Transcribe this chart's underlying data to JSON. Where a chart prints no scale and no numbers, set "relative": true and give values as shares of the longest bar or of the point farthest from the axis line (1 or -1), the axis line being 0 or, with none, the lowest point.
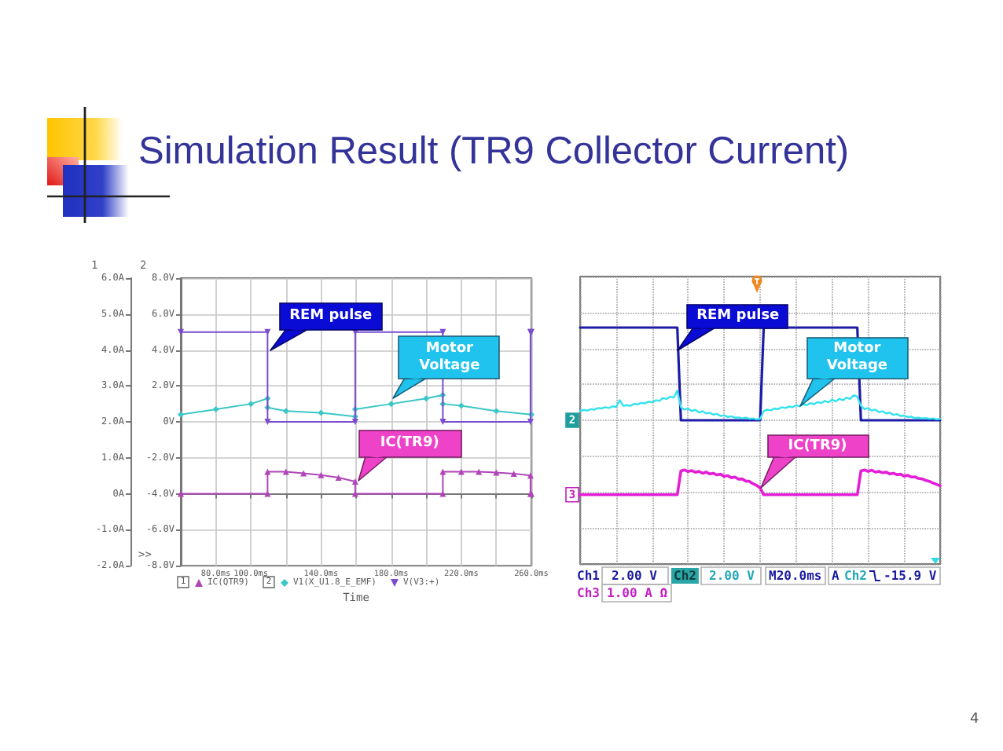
{
  "chart_data": [
    {
      "type": "line",
      "title": "Simulation Result (TR9 Collector Current)",
      "xlabel": "Time",
      "xlim": [
        60,
        260
      ],
      "xticks": [
        {
          "value": 80,
          "label": "80.0ms"
        },
        {
          "value": 100,
          "label": "100.0ms"
        },
        {
          "value": 120,
          "label": null
        },
        {
          "value": 140,
          "label": "140.0ms"
        },
        {
          "value": 160,
          "label": null
        },
        {
          "value": 180,
          "label": "180.0ms"
        },
        {
          "value": 200,
          "label": null
        },
        {
          "value": 220,
          "label": "220.0ms"
        },
        {
          "value": 240,
          "label": null
        },
        {
          "value": 260,
          "label": "260.0ms"
        }
      ],
      "ylim": [
        -2,
        6
      ],
      "yticks": [
        {
          "value": -2,
          "label": "-2.0A"
        },
        {
          "value": -1,
          "label": "-1.0A"
        },
        {
          "value": 0,
          "label": "0A"
        },
        {
          "value": 1,
          "label": "1.0A"
        },
        {
          "value": 2,
          "label": "2.0A"
        },
        {
          "value": 3,
          "label": "3.0A"
        },
        {
          "value": 4,
          "label": "4.0A"
        },
        {
          "value": 5,
          "label": "5.0A"
        },
        {
          "value": 6,
          "label": "6.0A"
        }
      ],
      "y2lim": [
        -8,
        8
      ],
      "y2ticks": [
        {
          "value": -8,
          "label": "-8.0V"
        },
        {
          "value": -6,
          "label": "-6.0V"
        },
        {
          "value": -4,
          "label": "-4.0V"
        },
        {
          "value": -2,
          "label": "-2.0V"
        },
        {
          "value": 0,
          "label": "0V"
        },
        {
          "value": 2,
          "label": "2.0V"
        },
        {
          "value": 4,
          "label": "4.0V"
        },
        {
          "value": 6,
          "label": "6.0V"
        },
        {
          "value": 8,
          "label": "8.0V"
        }
      ],
      "grid": true,
      "legend": "bottom",
      "series": [
        {
          "name": "IC(QTR9)",
          "color": "#b044b8",
          "marker": "triangle",
          "x": [
            60,
            109.5,
            109.5,
            120,
            130,
            140,
            150,
            159.5,
            159.5,
            209.5,
            209.5,
            220,
            230,
            240,
            250,
            259.5,
            259.5,
            260
          ],
          "values": [
            0,
            0,
            0.61,
            0.61,
            0.57,
            0.52,
            0.45,
            0.34,
            0,
            0,
            0.61,
            0.61,
            0.61,
            0.59,
            0.56,
            0.51,
            0,
            0
          ]
        },
        {
          "name": "V1(X_U1.8_E_EMF)",
          "color": "#3cc6c6",
          "axis": "y2",
          "marker": "diamond",
          "x": [
            60,
            80,
            100,
            109.5,
            109.5,
            120,
            140,
            159.5,
            159.5,
            180,
            200,
            209.5,
            209.5,
            220,
            240,
            260
          ],
          "values": [
            0.4,
            0.7,
            1.0,
            1.3,
            0.8,
            0.6,
            0.5,
            0.3,
            0.7,
            1.0,
            1.3,
            1.5,
            1.0,
            0.9,
            0.6,
            0.4
          ]
        },
        {
          "name": "V(V3:+)",
          "color": "#7a4cd0",
          "axis": "y2",
          "marker": "triangle-down",
          "x": [
            60,
            109.5,
            109.5,
            159.5,
            159.5,
            209.5,
            209.5,
            259.5,
            259.5,
            260
          ],
          "values": [
            5,
            5,
            0,
            0,
            5,
            5,
            0,
            0,
            5,
            5
          ]
        }
      ],
      "annotations": [
        {
          "text": "REM pulse",
          "x": 111,
          "y": 4
        },
        {
          "text": "Motor Voltage",
          "x": 181.5,
          "y": 2.65
        },
        {
          "text": "IC(TR9)",
          "x": 161,
          "y": 0.36
        },
        ">>",
        "1",
        "2",
        "1",
        "2"
      ]
    },
    {
      "type": "line",
      "relative": true,
      "grid": true,
      "categories": [
        null,
        null,
        null,
        null,
        null,
        null,
        null,
        null,
        null,
        null,
        null,
        null,
        null,
        null,
        null,
        null,
        null,
        null,
        null,
        null,
        null,
        null,
        null,
        null,
        null,
        null,
        null,
        null,
        null,
        null,
        null,
        null,
        null,
        null,
        null,
        null,
        null,
        null,
        null,
        null,
        null,
        null,
        null,
        null,
        null,
        null,
        null,
        null,
        null,
        null,
        null,
        null,
        null,
        null,
        null,
        null,
        null,
        null,
        null,
        null,
        null,
        null,
        null,
        null,
        null,
        null,
        null,
        null,
        null,
        null,
        null,
        null,
        null,
        null,
        null,
        null,
        null,
        null,
        null,
        null,
        null,
        null,
        null,
        null,
        null,
        null,
        null,
        null,
        null,
        null,
        null,
        null,
        null,
        null,
        null,
        null,
        null,
        null,
        null,
        null,
        null
      ],
      "series": [
        {
          "name": "REM pulse",
          "color": "#1c1ca6",
          "values": [
            1,
            1,
            1,
            1,
            1,
            1,
            1,
            1,
            1,
            1,
            1,
            1,
            1,
            1,
            1,
            1,
            1,
            1,
            1,
            1,
            1,
            1,
            1,
            1,
            1,
            1,
            1,
            1,
            0.608,
            0.608,
            0.608,
            0.608,
            0.608,
            0.608,
            0.608,
            0.608,
            0.608,
            0.608,
            0.608,
            0.608,
            0.608,
            0.608,
            0.608,
            0.608,
            0.608,
            0.608,
            0.608,
            0.608,
            0.608,
            0.608,
            0.608,
            1,
            1,
            1,
            1,
            1,
            1,
            1,
            1,
            1,
            1,
            1,
            1,
            1,
            1,
            1,
            1,
            1,
            1,
            1,
            1,
            1,
            1,
            1,
            1,
            1,
            1,
            1,
            0.608,
            0.608,
            0.608,
            0.608,
            0.608,
            0.608,
            0.608,
            0.608,
            0.608,
            0.608,
            0.608,
            0.608,
            0.608,
            0.608,
            0.608,
            0.608,
            0.608,
            0.608,
            0.608,
            0.608,
            0.608,
            0.608,
            0.608
          ]
        },
        {
          "name": "Motor Voltage",
          "color": "#33e2ee",
          "values": [
            0.647,
            0.652,
            0.649,
            0.655,
            0.653,
            0.66,
            0.658,
            0.663,
            0.66,
            0.667,
            0.664,
            0.693,
            0.669,
            0.672,
            0.669,
            0.678,
            0.675,
            0.682,
            0.679,
            0.687,
            0.684,
            0.693,
            0.69,
            0.702,
            0.698,
            0.708,
            0.704,
            0.733,
            0.663,
            0.653,
            0.658,
            0.647,
            0.652,
            0.641,
            0.646,
            0.637,
            0.64,
            0.632,
            0.635,
            0.626,
            0.629,
            0.622,
            0.625,
            0.619,
            0.62,
            0.616,
            0.619,
            0.614,
            0.616,
            0.612,
            0.614,
            0.647,
            0.653,
            0.65,
            0.658,
            0.655,
            0.663,
            0.66,
            0.666,
            0.663,
            0.672,
            0.667,
            0.676,
            0.672,
            0.681,
            0.676,
            0.685,
            0.681,
            0.69,
            0.684,
            0.695,
            0.688,
            0.699,
            0.693,
            0.704,
            0.698,
            0.714,
            0.708,
            0.669,
            0.655,
            0.66,
            0.649,
            0.653,
            0.643,
            0.646,
            0.637,
            0.64,
            0.631,
            0.634,
            0.626,
            0.628,
            0.622,
            0.623,
            0.617,
            0.619,
            0.616,
            0.617,
            0.614,
            0.616,
            0.612,
            0.614
          ]
        },
        {
          "name": "IC(TR9)",
          "color": "#e41ed6",
          "values": [
            0.293,
            0.293,
            0.293,
            0.293,
            0.293,
            0.293,
            0.293,
            0.293,
            0.293,
            0.293,
            0.293,
            0.293,
            0.293,
            0.293,
            0.293,
            0.293,
            0.293,
            0.293,
            0.293,
            0.293,
            0.293,
            0.293,
            0.293,
            0.293,
            0.293,
            0.293,
            0.293,
            0.293,
            0.394,
            0.398,
            0.391,
            0.395,
            0.388,
            0.392,
            0.384,
            0.389,
            0.381,
            0.384,
            0.377,
            0.38,
            0.371,
            0.374,
            0.365,
            0.368,
            0.359,
            0.36,
            0.351,
            0.35,
            0.34,
            0.333,
            0.322,
            0.293,
            0.293,
            0.293,
            0.293,
            0.293,
            0.293,
            0.293,
            0.293,
            0.293,
            0.293,
            0.293,
            0.293,
            0.293,
            0.293,
            0.293,
            0.293,
            0.293,
            0.293,
            0.293,
            0.293,
            0.293,
            0.293,
            0.293,
            0.293,
            0.293,
            0.293,
            0.293,
            0.394,
            0.398,
            0.392,
            0.397,
            0.389,
            0.392,
            0.386,
            0.389,
            0.381,
            0.384,
            0.378,
            0.38,
            0.372,
            0.375,
            0.368,
            0.369,
            0.362,
            0.36,
            0.354,
            0.35,
            0.343,
            0.337,
            0.331
          ]
        }
      ],
      "annotations": [
        "Ch1",
        "2.00 V",
        "Ch2",
        "2.00 V",
        "M20.0ms",
        "A",
        "Ch2",
        "-15.9 V",
        "Ch3",
        "1.00 A Ω",
        "4",
        {
          "text": "2",
          "y": 0.608
        },
        {
          "text": "3",
          "y": 0.293
        }
      ]
    }
  ]
}
